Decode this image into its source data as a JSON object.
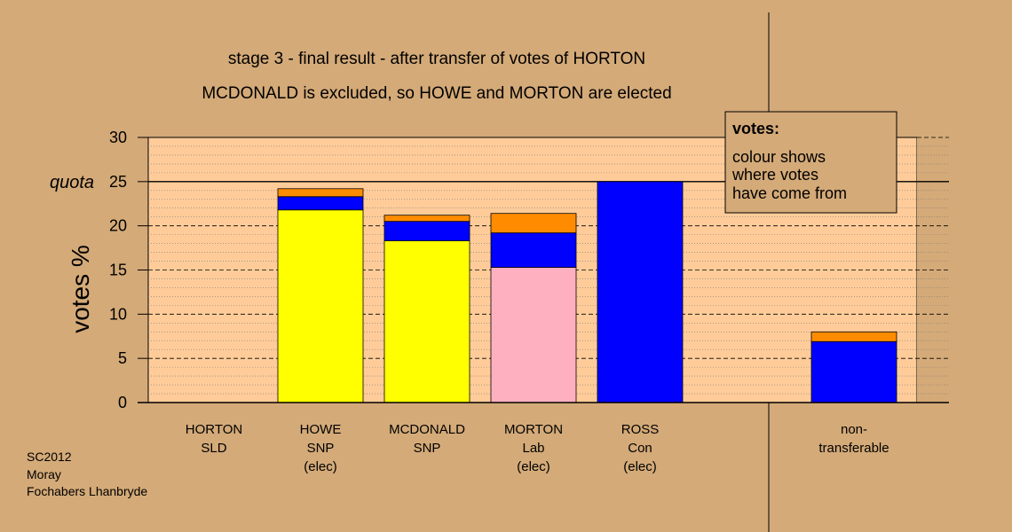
{
  "title_line1": "stage 3 - final result - after transfer of votes of HORTON",
  "title_line2": "MCDONALD is excluded, so HOWE and MORTON are elected",
  "legend": {
    "heading": "votes:",
    "lines": [
      "colour shows",
      "where votes",
      "have come from"
    ]
  },
  "footer": [
    "SC2012",
    "Moray",
    "Fochabers Lhanbryde"
  ],
  "chart_data": {
    "type": "bar",
    "stacked": true,
    "ylabel": "votes %",
    "ylim": [
      0,
      30
    ],
    "yticks": [
      0,
      5,
      10,
      15,
      20,
      25,
      30
    ],
    "quota": {
      "label": "quota",
      "value": 25
    },
    "grid": true,
    "legend_position": "top-right",
    "categories": [
      {
        "lines": [
          "HORTON",
          "SLD"
        ],
        "segments": []
      },
      {
        "lines": [
          "HOWE",
          "SNP",
          "(elec)"
        ],
        "segments": [
          {
            "value": 21.8,
            "color": "#ffff00"
          },
          {
            "value": 1.5,
            "color": "#0000ff"
          },
          {
            "value": 0.9,
            "color": "#ff8c00"
          }
        ]
      },
      {
        "lines": [
          "MCDONALD",
          "SNP"
        ],
        "segments": [
          {
            "value": 18.3,
            "color": "#ffff00"
          },
          {
            "value": 2.2,
            "color": "#0000ff"
          },
          {
            "value": 0.7,
            "color": "#ff8c00"
          }
        ]
      },
      {
        "lines": [
          "MORTON",
          "Lab",
          "(elec)"
        ],
        "segments": [
          {
            "value": 15.3,
            "color": "#ffb0c0"
          },
          {
            "value": 3.9,
            "color": "#0000ff"
          },
          {
            "value": 2.2,
            "color": "#ff8c00"
          }
        ]
      },
      {
        "lines": [
          "ROSS",
          "Con",
          "(elec)"
        ],
        "segments": [
          {
            "value": 25.0,
            "color": "#0000ff"
          }
        ]
      },
      {
        "lines": [
          "non-",
          "transferable"
        ],
        "segments": [
          {
            "value": 6.9,
            "color": "#0000ff"
          },
          {
            "value": 1.1,
            "color": "#ff8c00"
          }
        ]
      }
    ]
  }
}
